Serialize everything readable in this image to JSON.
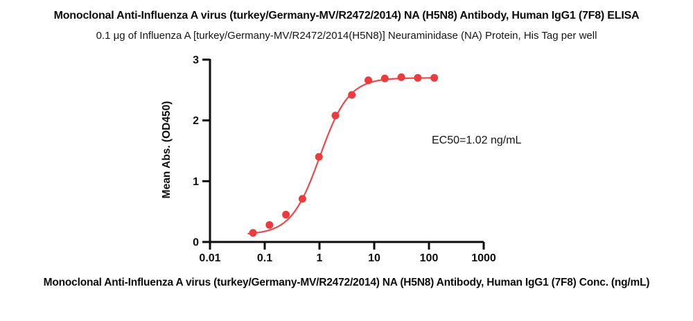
{
  "title": "Monoclonal Anti-Influenza A virus (turkey/Germany-MV/R2472/2014) NA (H5N8) Antibody, Human IgG1 (7F8) ELISA",
  "subtitle": "0.1 μg of Influenza A [turkey/Germany-MV/R2472/2014(H5N8)] Neuraminidase (NA) Protein, His Tag per well",
  "annotation": {
    "ec50_text": "EC50=1.02 ng/mL"
  },
  "chart_data": {
    "type": "scatter",
    "x_scale": "log10",
    "x": [
      0.061,
      0.122,
      0.244,
      0.488,
      0.977,
      1.953,
      3.906,
      7.813,
      15.625,
      31.25,
      62.5,
      125
    ],
    "y": [
      0.15,
      0.28,
      0.45,
      0.71,
      1.4,
      2.08,
      2.42,
      2.66,
      2.69,
      2.71,
      2.7,
      2.7
    ],
    "title": "Monoclonal Anti-Influenza A virus (turkey/Germany-MV/R2472/2014) NA (H5N8) Antibody, Human IgG1 (7F8) ELISA",
    "subtitle": "0.1 μg of Influenza A [turkey/Germany-MV/R2472/2014(H5N8)] Neuraminidase (NA) Protein, His Tag per well",
    "xlabel": "Monoclonal Anti-Influenza A virus (turkey/Germany-MV/R2472/2014) NA (H5N8) Antibody, Human IgG1 (7F8) Conc. (ng/mL)",
    "ylabel": "Mean Abs. (OD450)",
    "xlim": [
      0.01,
      1000
    ],
    "ylim": [
      0,
      3
    ],
    "x_ticks": [
      0.01,
      0.1,
      1,
      10,
      100,
      1000
    ],
    "x_tick_labels": [
      "0.01",
      "0.1",
      "1",
      "10",
      "100",
      "1000"
    ],
    "y_ticks": [
      0,
      1,
      2,
      3
    ],
    "y_tick_labels": [
      "0",
      "1",
      "2",
      "3"
    ],
    "grid": false,
    "legend": false,
    "annotation_text": "EC50=1.02 ng/mL",
    "fit_curve": {
      "model": "4PL",
      "bottom": 0.12,
      "top": 2.7,
      "ec50": 1.02,
      "hill": 1.65,
      "x_range": [
        0.05,
        125
      ]
    },
    "colors": {
      "points": "#ED3A3C",
      "curve": "#EF4749",
      "axis": "#0d0d0d",
      "text": "#0d0d0d"
    }
  }
}
